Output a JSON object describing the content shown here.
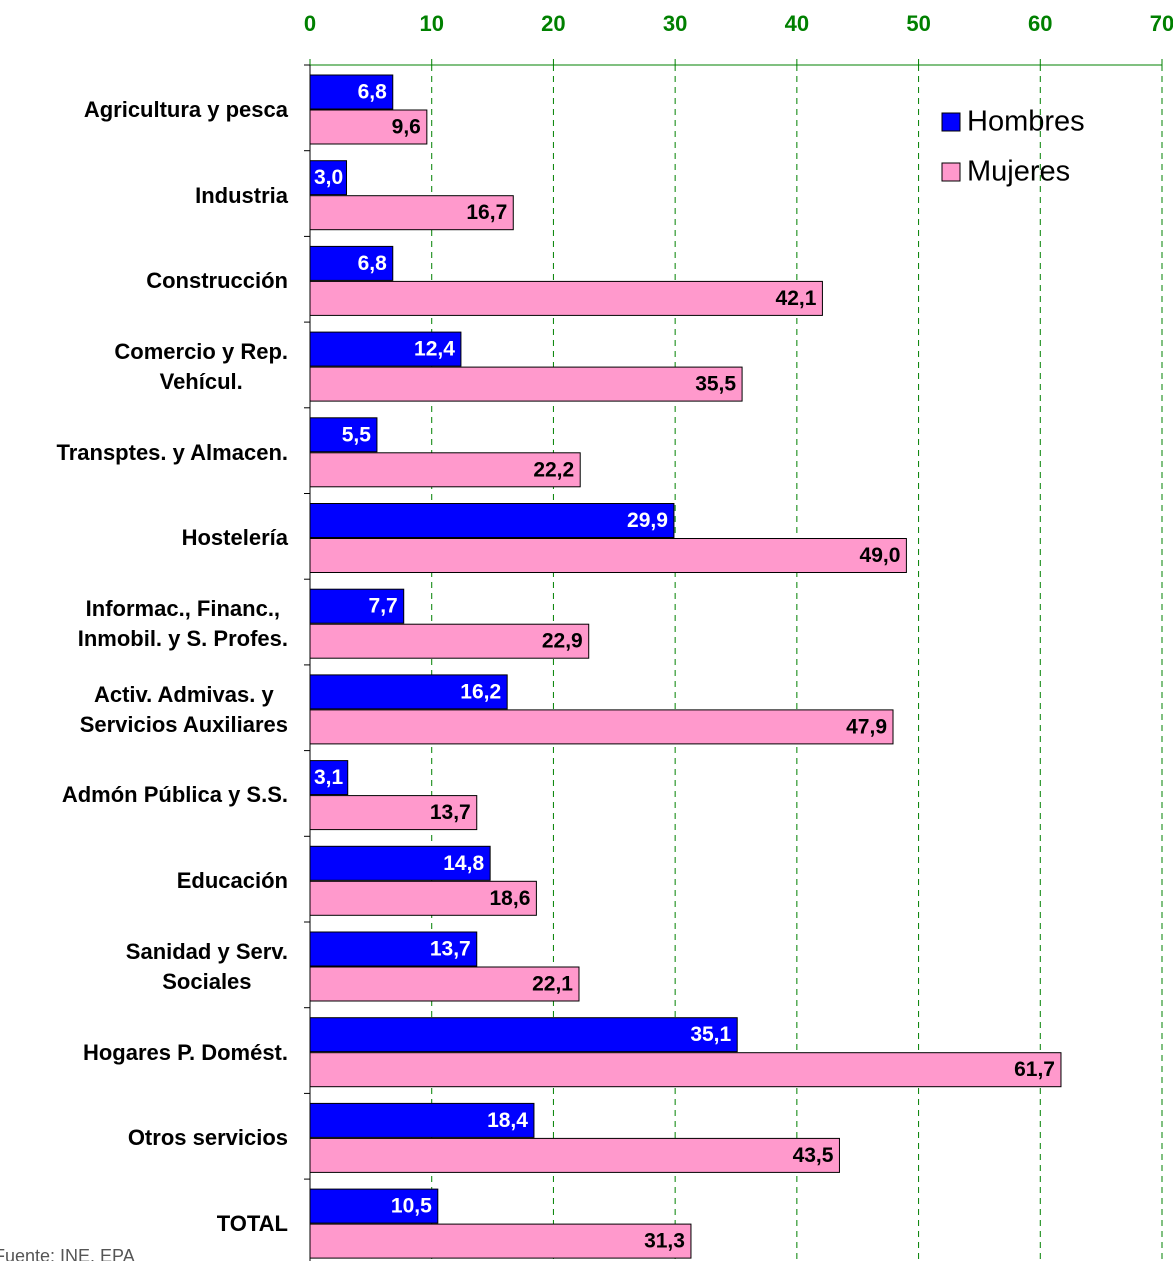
{
  "chart_data": {
    "type": "bar",
    "orientation": "horizontal",
    "categories": [
      "Agricultura y pesca",
      "Industria",
      "Construcción",
      "Comercio y Rep.\nVehícul.",
      "Transptes. y Almacen.",
      "Hostelería",
      "Informac., Financ.,\nInmobil. y S. Profes.",
      "Activ. Admivas. y\nServicios Auxiliares",
      "Admón Pública y S.S.",
      "Educación",
      "Sanidad y Serv.\nSociales",
      "Hogares P. Domést.",
      "Otros servicios",
      "TOTAL"
    ],
    "series": [
      {
        "name": "Hombres",
        "color": "#0000ff",
        "label_color": "#ffffff",
        "values": [
          6.8,
          3.0,
          6.8,
          12.4,
          5.5,
          29.9,
          7.7,
          16.2,
          3.1,
          14.8,
          13.7,
          35.1,
          18.4,
          10.5
        ],
        "value_labels": [
          "6,8",
          "3,0",
          "6,8",
          "12,4",
          "5,5",
          "29,9",
          "7,7",
          "16,2",
          "3,1",
          "14,8",
          "13,7",
          "35,1",
          "18,4",
          "10,5"
        ]
      },
      {
        "name": "Mujeres",
        "color": "#ff99cc",
        "label_color": "#000000",
        "values": [
          9.6,
          16.7,
          42.1,
          35.5,
          22.2,
          49.0,
          22.9,
          47.9,
          13.7,
          18.6,
          22.1,
          61.7,
          43.5,
          31.3
        ],
        "value_labels": [
          "9,6",
          "16,7",
          "42,1",
          "35,5",
          "22,2",
          "49,0",
          "22,9",
          "47,9",
          "13,7",
          "18,6",
          "22,1",
          "61,7",
          "43,5",
          "31,3"
        ]
      }
    ],
    "xlim": [
      0,
      70
    ],
    "xticks": [
      0,
      10,
      20,
      30,
      40,
      50,
      60,
      70
    ],
    "tick_color": "#008000",
    "grid": true,
    "grid_color": "#008000",
    "legend": "upper right",
    "source": "Fuente: INE. EPA"
  }
}
